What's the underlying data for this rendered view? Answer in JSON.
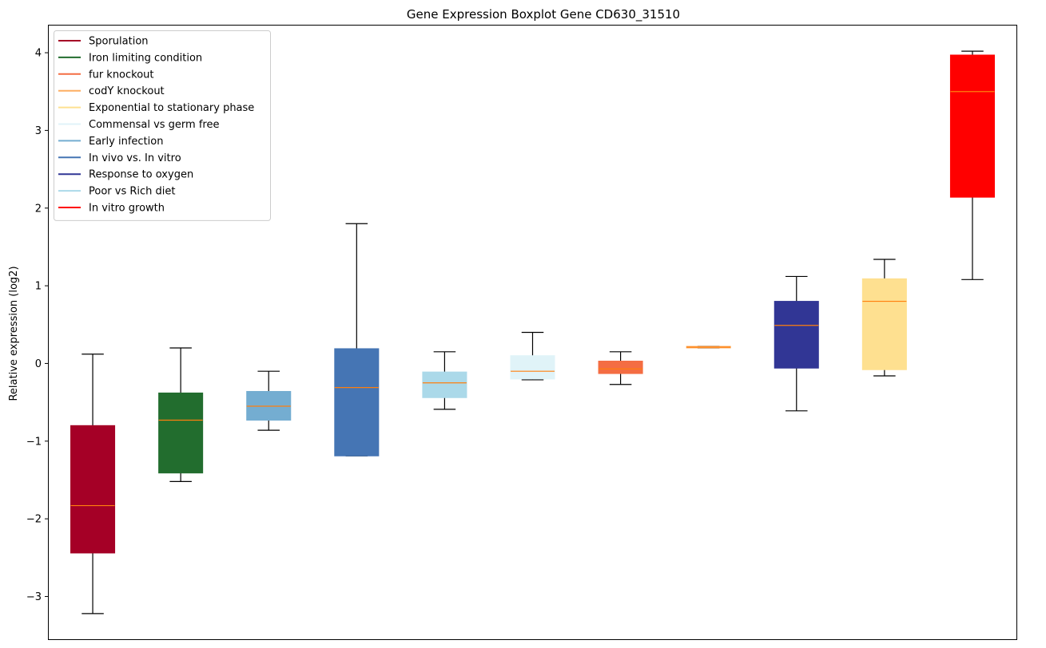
{
  "chart_data": {
    "type": "boxplot",
    "title": "Gene Expression Boxplot Gene CD630_31510",
    "xlabel": "",
    "ylabel": "Relative expression (log2)",
    "ylim": [
      -3.55,
      4.35
    ],
    "yticks": [
      -3,
      -2,
      -1,
      0,
      1,
      2,
      3,
      4
    ],
    "ytick_labels": [
      "−3",
      "−2",
      "−1",
      "0",
      "1",
      "2",
      "3",
      "4"
    ],
    "median_color": "#ff7f0e",
    "legend": {
      "location": "top-left",
      "entries": [
        {
          "label": "Sporulation",
          "color": "#a50026"
        },
        {
          "label": "Iron limiting condition",
          "color": "#226d2e"
        },
        {
          "label": "fur knockout",
          "color": "#f46d43"
        },
        {
          "label": "codY knockout",
          "color": "#fdae61"
        },
        {
          "label": "Exponential to stationary phase",
          "color": "#fee090"
        },
        {
          "label": "Commensal vs germ free",
          "color": "#e0f3f8"
        },
        {
          "label": "Early infection",
          "color": "#74add1"
        },
        {
          "label": "In vivo vs. In vitro",
          "color": "#4575b4"
        },
        {
          "label": "Response to oxygen",
          "color": "#313695"
        },
        {
          "label": "Poor vs Rich diet",
          "color": "#abd9e9"
        },
        {
          "label": "In vitro growth",
          "color": "#ff0000"
        }
      ]
    },
    "boxes": [
      {
        "group": "Sporulation",
        "color": "#a50026",
        "whisker_low": -3.22,
        "q1": -2.44,
        "median": -1.83,
        "q3": -0.8,
        "whisker_high": 0.12
      },
      {
        "group": "Iron limiting condition",
        "color": "#226d2e",
        "whisker_low": -1.52,
        "q1": -1.41,
        "median": -0.73,
        "q3": -0.38,
        "whisker_high": 0.2
      },
      {
        "group": "Early infection",
        "color": "#74add1",
        "whisker_low": -0.86,
        "q1": -0.73,
        "median": -0.55,
        "q3": -0.36,
        "whisker_high": -0.1
      },
      {
        "group": "In vivo vs. In vitro",
        "color": "#4575b4",
        "whisker_low": -1.19,
        "q1": -1.19,
        "median": -0.31,
        "q3": 0.19,
        "whisker_high": 1.8
      },
      {
        "group": "Poor vs Rich diet",
        "color": "#abd9e9",
        "whisker_low": -0.59,
        "q1": -0.44,
        "median": -0.25,
        "q3": -0.11,
        "whisker_high": 0.15
      },
      {
        "group": "Commensal vs germ free",
        "color": "#e0f3f8",
        "whisker_low": -0.21,
        "q1": -0.2,
        "median": -0.1,
        "q3": 0.1,
        "whisker_high": 0.4
      },
      {
        "group": "fur knockout",
        "color": "#f46d43",
        "whisker_low": -0.27,
        "q1": -0.13,
        "median": -0.07,
        "q3": 0.03,
        "whisker_high": 0.15
      },
      {
        "group": "codY knockout",
        "color": "#fdae61",
        "whisker_low": 0.2,
        "q1": 0.2,
        "median": 0.21,
        "q3": 0.22,
        "whisker_high": 0.22
      },
      {
        "group": "Response to oxygen",
        "color": "#313695",
        "whisker_low": -0.61,
        "q1": -0.06,
        "median": 0.49,
        "q3": 0.8,
        "whisker_high": 1.12
      },
      {
        "group": "Exponential to stationary phase",
        "color": "#fee090",
        "whisker_low": -0.16,
        "q1": -0.08,
        "median": 0.8,
        "q3": 1.09,
        "whisker_high": 1.34
      },
      {
        "group": "In vitro growth",
        "color": "#ff0000",
        "whisker_low": 1.08,
        "q1": 2.14,
        "median": 3.5,
        "q3": 3.97,
        "whisker_high": 4.02
      }
    ]
  }
}
